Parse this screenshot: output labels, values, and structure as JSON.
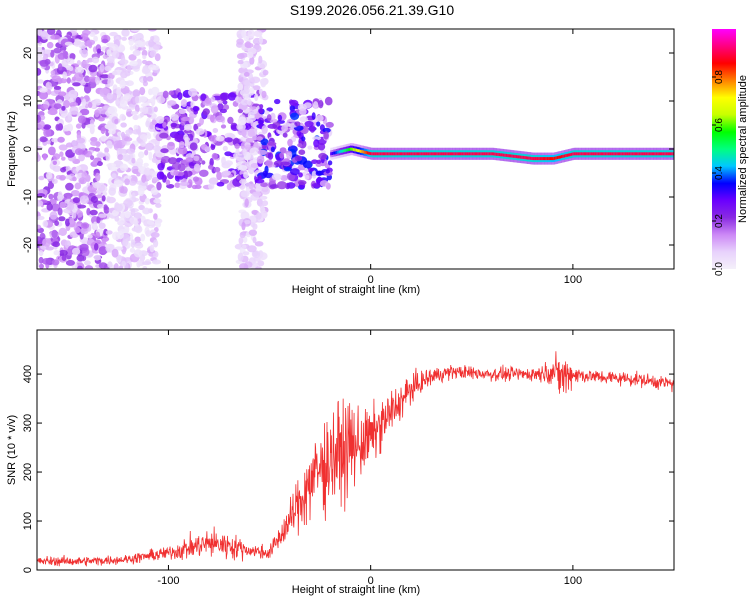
{
  "title": "S199.2026.056.21.39.G10",
  "chart_data": [
    {
      "type": "heatmap",
      "panel": "spectrogram",
      "xlabel": "Height of straight line (km)",
      "ylabel": "Frequency (Hz)",
      "xlim": [
        -165,
        150
      ],
      "ylim": [
        -25,
        25
      ],
      "xticks": [
        -100,
        0,
        100
      ],
      "yticks": [
        -20,
        -10,
        0,
        10,
        20
      ],
      "grid": false,
      "colorbar": {
        "label": "Normalized spectral amplitude",
        "range": [
          0,
          1
        ],
        "ticks": [
          "0.0",
          "0.2",
          "0.4",
          "0.6",
          "0.8"
        ],
        "colors": [
          "#f4f0fa",
          "#e8d2fc",
          "#cc88f6",
          "#8a2be2",
          "#6a00ff",
          "#0000ff",
          "#00c8ff",
          "#00ff80",
          "#00ff00",
          "#c8ff00",
          "#ffff00",
          "#ff8000",
          "#ff0000",
          "#ff0080",
          "#ff00ff"
        ]
      },
      "signal_line": {
        "description": "narrow band near 0 Hz from about -20 km to 150 km",
        "x": [
          -20,
          -10,
          0,
          10,
          30,
          60,
          80,
          90,
          100,
          150
        ],
        "frequency": [
          -1,
          0,
          -1,
          -1,
          -1,
          -1,
          -2,
          -2,
          -1,
          -1
        ],
        "amplitude": [
          0.3,
          0.6,
          0.9,
          0.9,
          0.9,
          0.9,
          0.9,
          0.85,
          0.9,
          0.9
        ]
      },
      "noise_regions": [
        {
          "x": [
            -165,
            -130
          ],
          "frequency_span": [
            -25,
            25
          ],
          "amplitude": 0.15
        },
        {
          "x": [
            -130,
            -105
          ],
          "frequency_span": [
            -25,
            25
          ],
          "amplitude": 0.08
        },
        {
          "x": [
            -105,
            -55
          ],
          "frequency_span": [
            -8,
            12
          ],
          "amplitude": 0.2
        },
        {
          "x": [
            -65,
            -52
          ],
          "frequency_span": [
            -25,
            25
          ],
          "amplitude": 0.08
        },
        {
          "x": [
            -55,
            -20
          ],
          "frequency_span": [
            -8,
            10
          ],
          "amplitude": 0.25
        }
      ]
    },
    {
      "type": "line",
      "panel": "snr",
      "xlabel": "Height of straight line (km)",
      "ylabel": "SNR (10 * v/v)",
      "xlim": [
        -165,
        150
      ],
      "ylim": [
        0,
        490
      ],
      "xticks": [
        -100,
        0,
        100
      ],
      "yticks": [
        0,
        100,
        200,
        300,
        400
      ],
      "grid": false,
      "color": "#f03030",
      "series": [
        {
          "name": "SNR",
          "x": [
            -165,
            -140,
            -120,
            -100,
            -90,
            -80,
            -70,
            -60,
            -50,
            -40,
            -30,
            -20,
            -10,
            0,
            10,
            20,
            30,
            40,
            60,
            80,
            90,
            95,
            100,
            110,
            130,
            150
          ],
          "values": [
            18,
            18,
            22,
            35,
            45,
            55,
            50,
            40,
            35,
            100,
            180,
            230,
            250,
            270,
            320,
            370,
            395,
            405,
            400,
            400,
            405,
            395,
            400,
            395,
            390,
            380
          ],
          "noise": [
            10,
            10,
            10,
            15,
            25,
            30,
            30,
            15,
            15,
            40,
            90,
            110,
            100,
            60,
            50,
            30,
            20,
            15,
            15,
            15,
            25,
            60,
            20,
            15,
            15,
            15
          ]
        }
      ]
    }
  ]
}
